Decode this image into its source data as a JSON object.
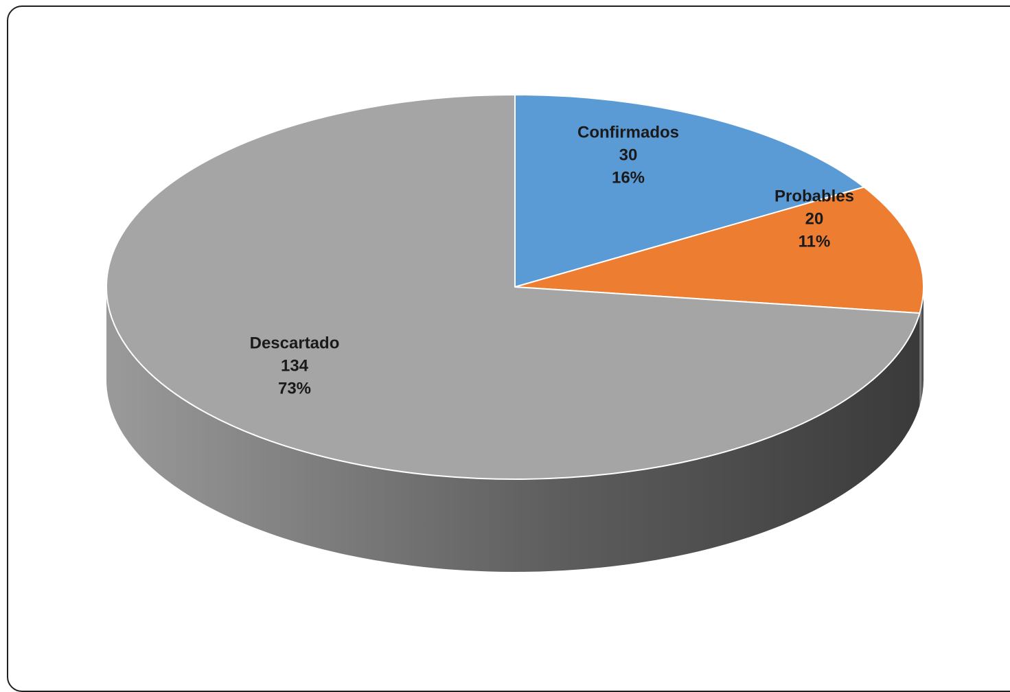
{
  "chart_data": {
    "type": "pie",
    "style": "3d",
    "title": "",
    "slices": [
      {
        "label": "Confirmados",
        "value": 30,
        "percent": "16%",
        "color": "#5b9bd5"
      },
      {
        "label": "Probables",
        "value": 20,
        "percent": "11%",
        "color": "#ed7d31"
      },
      {
        "label": "Descartado",
        "value": 134,
        "percent": "73%",
        "color": "#a5a5a5"
      }
    ],
    "labels_shown": [
      "category",
      "value",
      "percent"
    ],
    "legend": "none"
  }
}
